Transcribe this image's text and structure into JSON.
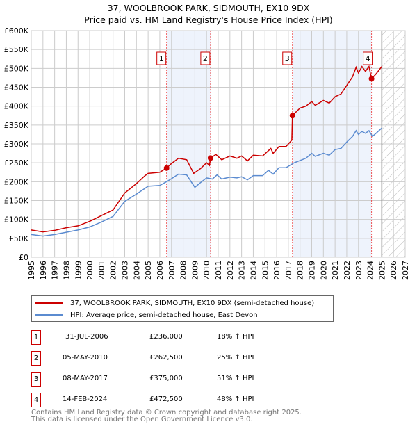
{
  "title": "37, WOOLBROOK PARK, SIDMOUTH, EX10 9DX",
  "subtitle": "Price paid vs. HM Land Registry's House Price Index (HPI)",
  "colors": {
    "property": "#cc0000",
    "hpi": "#5b8bd0",
    "shade": "#eef3fc"
  },
  "chart_data": {
    "type": "line",
    "title": "37, WOOLBROOK PARK, SIDMOUTH, EX10 9DX — Price paid vs. HM Land Registry's House Price Index (HPI)",
    "xlim": [
      1995,
      2027
    ],
    "ylim": [
      0,
      600000
    ],
    "x_ticks": [
      "1995",
      "1996",
      "1997",
      "1998",
      "1999",
      "2000",
      "2001",
      "2002",
      "2003",
      "2004",
      "2005",
      "2006",
      "2007",
      "2008",
      "2009",
      "2010",
      "2011",
      "2012",
      "2013",
      "2014",
      "2015",
      "2016",
      "2017",
      "2018",
      "2019",
      "2020",
      "2021",
      "2022",
      "2023",
      "2024",
      "2025",
      "2026",
      "2027"
    ],
    "y_ticks": [
      {
        "v": 0,
        "label": "£0"
      },
      {
        "v": 50000,
        "label": "£50K"
      },
      {
        "v": 100000,
        "label": "£100K"
      },
      {
        "v": 150000,
        "label": "£150K"
      },
      {
        "v": 200000,
        "label": "£200K"
      },
      {
        "v": 250000,
        "label": "£250K"
      },
      {
        "v": 300000,
        "label": "£300K"
      },
      {
        "v": 350000,
        "label": "£350K"
      },
      {
        "v": 400000,
        "label": "£400K"
      },
      {
        "v": 450000,
        "label": "£450K"
      },
      {
        "v": 500000,
        "label": "£500K"
      },
      {
        "v": 550000,
        "label": "£550K"
      },
      {
        "v": 600000,
        "label": "£600K"
      }
    ],
    "shaded_ranges": [
      [
        2006.58,
        2010.34
      ],
      [
        2017.35,
        2024.12
      ]
    ],
    "forecast_from": 2025.0,
    "series": [
      {
        "name": "37, WOOLBROOK PARK, SIDMOUTH, EX10 9DX (semi-detached house)",
        "color": "#cc0000",
        "points": [
          [
            1995,
            72
          ],
          [
            1996,
            67
          ],
          [
            1997,
            71
          ],
          [
            1998,
            78
          ],
          [
            1999,
            83
          ],
          [
            2000,
            95
          ],
          [
            2001,
            110
          ],
          [
            2002,
            125
          ],
          [
            2003,
            170
          ],
          [
            2004,
            195
          ],
          [
            2004.7,
            215
          ],
          [
            2005,
            222
          ],
          [
            2006,
            225
          ],
          [
            2006.58,
            236
          ],
          [
            2007,
            248
          ],
          [
            2007.6,
            262
          ],
          [
            2008.3,
            258
          ],
          [
            2008.9,
            222
          ],
          [
            2009.5,
            235
          ],
          [
            2010,
            250
          ],
          [
            2010.25,
            243
          ],
          [
            2010.34,
            262.5
          ],
          [
            2010.8,
            272
          ],
          [
            2011.3,
            258
          ],
          [
            2012,
            268
          ],
          [
            2012.6,
            262
          ],
          [
            2013,
            268
          ],
          [
            2013.5,
            255
          ],
          [
            2014,
            270
          ],
          [
            2014.8,
            268
          ],
          [
            2015.5,
            288
          ],
          [
            2015.7,
            275
          ],
          [
            2016.2,
            293
          ],
          [
            2016.8,
            293
          ],
          [
            2017.3,
            310
          ],
          [
            2017.35,
            375
          ],
          [
            2018,
            395
          ],
          [
            2018.5,
            400
          ],
          [
            2019,
            412
          ],
          [
            2019.3,
            402
          ],
          [
            2020,
            415
          ],
          [
            2020.5,
            408
          ],
          [
            2021,
            425
          ],
          [
            2021.5,
            432
          ],
          [
            2022,
            455
          ],
          [
            2022.5,
            478
          ],
          [
            2022.8,
            503
          ],
          [
            2023,
            488
          ],
          [
            2023.3,
            505
          ],
          [
            2023.6,
            492
          ],
          [
            2023.9,
            505
          ],
          [
            2024.12,
            472.5
          ],
          [
            2024.5,
            485
          ],
          [
            2025,
            505
          ]
        ]
      },
      {
        "name": "HPI: Average price, semi-detached house, East Devon",
        "color": "#5b8bd0",
        "points": [
          [
            1995,
            60
          ],
          [
            1996,
            56
          ],
          [
            1997,
            60
          ],
          [
            1998,
            66
          ],
          [
            1999,
            72
          ],
          [
            2000,
            80
          ],
          [
            2001,
            93
          ],
          [
            2002,
            108
          ],
          [
            2003,
            148
          ],
          [
            2004,
            167
          ],
          [
            2005,
            188
          ],
          [
            2006,
            190
          ],
          [
            2006.58,
            200
          ],
          [
            2007,
            208
          ],
          [
            2007.6,
            220
          ],
          [
            2008.3,
            218
          ],
          [
            2009,
            185
          ],
          [
            2009.5,
            198
          ],
          [
            2010,
            210
          ],
          [
            2010.5,
            207
          ],
          [
            2010.9,
            218
          ],
          [
            2011.3,
            207
          ],
          [
            2012,
            212
          ],
          [
            2012.6,
            210
          ],
          [
            2013,
            213
          ],
          [
            2013.5,
            205
          ],
          [
            2014,
            216
          ],
          [
            2014.8,
            216
          ],
          [
            2015.3,
            230
          ],
          [
            2015.7,
            220
          ],
          [
            2016.2,
            237
          ],
          [
            2016.8,
            237
          ],
          [
            2017.5,
            250
          ],
          [
            2018,
            256
          ],
          [
            2018.5,
            262
          ],
          [
            2019,
            275
          ],
          [
            2019.3,
            267
          ],
          [
            2020,
            275
          ],
          [
            2020.5,
            270
          ],
          [
            2021,
            285
          ],
          [
            2021.5,
            288
          ],
          [
            2022,
            305
          ],
          [
            2022.5,
            320
          ],
          [
            2022.8,
            335
          ],
          [
            2023,
            325
          ],
          [
            2023.3,
            333
          ],
          [
            2023.6,
            328
          ],
          [
            2023.9,
            335
          ],
          [
            2024.2,
            320
          ],
          [
            2024.5,
            328
          ],
          [
            2025,
            342
          ]
        ]
      }
    ],
    "sales": [
      {
        "n": "1",
        "x": 2006.58,
        "y": 236
      },
      {
        "n": "2",
        "x": 2010.34,
        "y": 262.5
      },
      {
        "n": "3",
        "x": 2017.35,
        "y": 375
      },
      {
        "n": "4",
        "x": 2024.12,
        "y": 472.5
      }
    ]
  },
  "legend": {
    "property": "37, WOOLBROOK PARK, SIDMOUTH, EX10 9DX (semi-detached house)",
    "hpi": "HPI: Average price, semi-detached house, East Devon"
  },
  "transactions": [
    {
      "n": "1",
      "date": "31-JUL-2006",
      "price": "£236,000",
      "hpi": "18% ↑ HPI"
    },
    {
      "n": "2",
      "date": "05-MAY-2010",
      "price": "£262,500",
      "hpi": "25% ↑ HPI"
    },
    {
      "n": "3",
      "date": "08-MAY-2017",
      "price": "£375,000",
      "hpi": "51% ↑ HPI"
    },
    {
      "n": "4",
      "date": "14-FEB-2024",
      "price": "£472,500",
      "hpi": "48% ↑ HPI"
    }
  ],
  "footer": [
    "Contains HM Land Registry data © Crown copyright and database right 2025.",
    "This data is licensed under the Open Government Licence v3.0."
  ]
}
